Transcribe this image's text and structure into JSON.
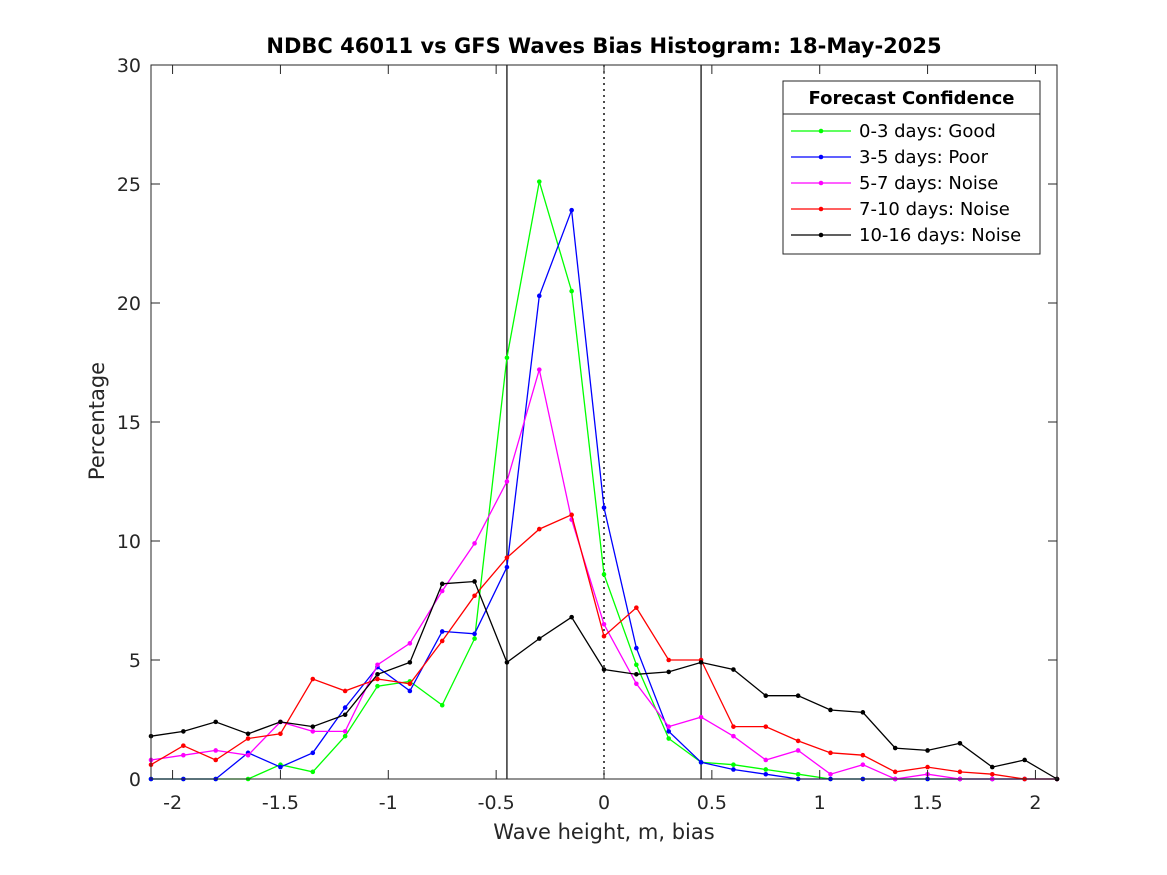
{
  "chart_data": {
    "type": "line",
    "title": "NDBC 46011 vs GFS Waves Bias Histogram: 18-May-2025",
    "xlabel": "Wave height, m, bias",
    "ylabel": "Percentage",
    "xlim": [
      -2.1,
      2.1
    ],
    "ylim": [
      0,
      30
    ],
    "xticks": [
      -2,
      -1.5,
      -1,
      -0.5,
      0,
      0.5,
      1,
      1.5,
      2
    ],
    "xtick_labels": [
      "-2",
      "-1.5",
      "-1",
      "-0.5",
      "0",
      "0.5",
      "1",
      "1.5",
      "2"
    ],
    "yticks": [
      0,
      5,
      10,
      15,
      20,
      25,
      30
    ],
    "ytick_labels": [
      "0",
      "5",
      "10",
      "15",
      "20",
      "25",
      "30"
    ],
    "grid": false,
    "vlines": [
      {
        "x": -0.45,
        "style": "solid"
      },
      {
        "x": 0,
        "style": "dotted"
      },
      {
        "x": 0.45,
        "style": "solid"
      }
    ],
    "legend": {
      "title": "Forecast Confidence",
      "placement": "top-right"
    },
    "x": [
      -2.1,
      -1.95,
      -1.8,
      -1.65,
      -1.5,
      -1.35,
      -1.2,
      -1.05,
      -0.9,
      -0.75,
      -0.6,
      -0.45,
      -0.3,
      -0.15,
      0,
      0.15,
      0.3,
      0.45,
      0.6,
      0.75,
      0.9,
      1.05,
      1.2,
      1.35,
      1.5,
      1.65,
      1.8,
      1.95,
      2.1
    ],
    "series": [
      {
        "name": "0-3 days: Good",
        "color": "#00ff00",
        "values": [
          0,
          0,
          0,
          0,
          0.6,
          0.3,
          1.8,
          3.9,
          4.1,
          3.1,
          5.9,
          17.7,
          25.1,
          20.5,
          8.6,
          4.8,
          1.7,
          0.7,
          0.6,
          0.4,
          0.2,
          0,
          0,
          0,
          0,
          0,
          0,
          0,
          0
        ]
      },
      {
        "name": "3-5 days: Poor",
        "color": "#0000ff",
        "values": [
          0,
          0,
          0,
          1.1,
          0.5,
          1.1,
          3.0,
          4.7,
          3.7,
          6.2,
          6.1,
          8.9,
          20.3,
          23.9,
          11.4,
          5.5,
          2.0,
          0.7,
          0.4,
          0.2,
          0,
          0,
          0,
          0,
          0,
          0,
          0,
          0,
          0
        ]
      },
      {
        "name": "5-7 days: Noise",
        "color": "#ff00ff",
        "values": [
          0.8,
          1.0,
          1.2,
          1.0,
          2.4,
          2.0,
          2.0,
          4.8,
          5.7,
          7.9,
          9.9,
          12.5,
          17.2,
          10.9,
          6.5,
          4.0,
          2.2,
          2.6,
          1.8,
          0.8,
          1.2,
          0.2,
          0.6,
          0,
          0.2,
          0,
          0,
          0,
          0
        ]
      },
      {
        "name": "7-10 days: Noise",
        "color": "#ff0000",
        "values": [
          0.6,
          1.4,
          0.8,
          1.7,
          1.9,
          4.2,
          3.7,
          4.2,
          4.0,
          5.8,
          7.7,
          9.3,
          10.5,
          11.1,
          6.0,
          7.2,
          5.0,
          5.0,
          2.2,
          2.2,
          1.6,
          1.1,
          1.0,
          0.3,
          0.5,
          0.3,
          0.2,
          0,
          0
        ]
      },
      {
        "name": "10-16 days: Noise",
        "color": "#000000",
        "values": [
          1.8,
          2.0,
          2.4,
          1.9,
          2.4,
          2.2,
          2.7,
          4.4,
          4.9,
          8.2,
          8.3,
          4.9,
          5.9,
          6.8,
          4.6,
          4.4,
          4.5,
          4.9,
          4.6,
          3.5,
          3.5,
          2.9,
          2.8,
          1.3,
          1.2,
          1.5,
          0.5,
          0.8,
          0
        ]
      }
    ]
  }
}
